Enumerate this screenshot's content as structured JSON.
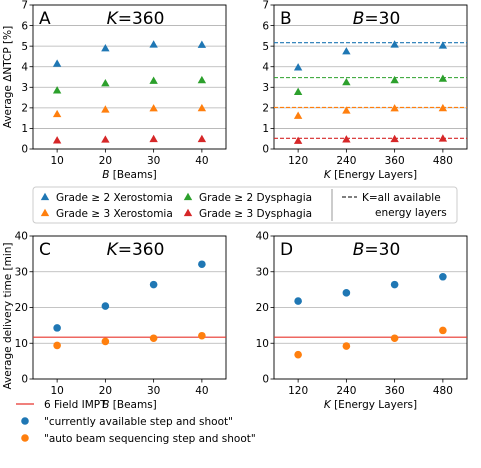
{
  "colors": {
    "blue": "#1f77b4",
    "orange": "#ff7f0e",
    "green": "#2ca02c",
    "red": "#d62728",
    "ref_line": "#e8352d",
    "grid": "#b0b0b0"
  },
  "top_legend": {
    "items": [
      {
        "label": "Grade ≥ 2 Xerostomia",
        "color": "blue",
        "marker": "triangle"
      },
      {
        "label": "Grade ≥ 3 Xerostomia",
        "color": "orange",
        "marker": "triangle"
      },
      {
        "label": "Grade ≥ 2 Dysphagia",
        "color": "green",
        "marker": "triangle"
      },
      {
        "label": "Grade ≥ 3 Dysphagia",
        "color": "red",
        "marker": "triangle"
      }
    ],
    "dashed_label_line1": "K=all available",
    "dashed_label_line2": "energy layers"
  },
  "bottom_legend": {
    "items": [
      {
        "label": "6 Field IMPT",
        "color": "ref_line",
        "marker": "line"
      },
      {
        "label": "\"currently available step and shoot\"",
        "color": "blue",
        "marker": "circle"
      },
      {
        "label": "\"auto beam sequencing step and shoot\"",
        "color": "orange",
        "marker": "circle"
      }
    ]
  },
  "chart_data": [
    {
      "type": "scatter",
      "panel_label": "A",
      "title_var": "K",
      "title_value": "=360",
      "xlabel_var": "B",
      "xlabel_rest": " [Beams]",
      "ylabel": "Average ΔNTCP [%]",
      "x": [
        10,
        20,
        30,
        40
      ],
      "xlim": [
        5,
        45
      ],
      "ylim": [
        0,
        7
      ],
      "yticks": [
        0,
        1,
        2,
        3,
        4,
        5,
        6,
        7
      ],
      "grid": "y",
      "marker": "triangle",
      "series": [
        {
          "color": "blue",
          "values": [
            4.15,
            4.9,
            5.08,
            5.07
          ]
        },
        {
          "color": "green",
          "values": [
            2.85,
            3.2,
            3.32,
            3.35
          ]
        },
        {
          "color": "orange",
          "values": [
            1.7,
            1.92,
            1.98,
            1.99
          ]
        },
        {
          "color": "red",
          "values": [
            0.42,
            0.46,
            0.49,
            0.49
          ]
        }
      ]
    },
    {
      "type": "scatter",
      "panel_label": "B",
      "title_var": "B",
      "title_value": "=30",
      "xlabel_var": "K",
      "xlabel_rest": " [Energy Layers]",
      "ylabel": "",
      "x": [
        120,
        240,
        360,
        480
      ],
      "xlim": [
        60,
        540
      ],
      "ylim": [
        0,
        7
      ],
      "yticks": [
        0,
        1,
        2,
        3,
        4,
        5,
        6,
        7
      ],
      "grid": "y",
      "marker": "triangle",
      "series": [
        {
          "color": "blue",
          "values": [
            3.97,
            4.75,
            5.08,
            5.03
          ],
          "ref": 5.17
        },
        {
          "color": "green",
          "values": [
            2.78,
            3.25,
            3.35,
            3.42
          ],
          "ref": 3.47
        },
        {
          "color": "orange",
          "values": [
            1.62,
            1.87,
            1.98,
            1.99
          ],
          "ref": 2.02
        },
        {
          "color": "red",
          "values": [
            0.4,
            0.47,
            0.49,
            0.51
          ],
          "ref": 0.52
        }
      ]
    },
    {
      "type": "scatter",
      "panel_label": "C",
      "title_var": "K",
      "title_value": "=360",
      "xlabel_var": "B",
      "xlabel_rest": " [Beams]",
      "ylabel": "Average delivery time [min]",
      "x": [
        10,
        20,
        30,
        40
      ],
      "xlim": [
        5,
        45
      ],
      "ylim": [
        0,
        40
      ],
      "yticks": [
        0,
        10,
        20,
        30,
        40
      ],
      "grid": "y",
      "marker": "circle",
      "ref_line": 11.7,
      "series": [
        {
          "color": "blue",
          "values": [
            14.3,
            20.4,
            26.4,
            32.1
          ]
        },
        {
          "color": "orange",
          "values": [
            9.4,
            10.5,
            11.4,
            12.1
          ]
        }
      ]
    },
    {
      "type": "scatter",
      "panel_label": "D",
      "title_var": "B",
      "title_value": "=30",
      "xlabel_var": "K",
      "xlabel_rest": " [Energy Layers]",
      "ylabel": "",
      "x": [
        120,
        240,
        360,
        480
      ],
      "xlim": [
        60,
        540
      ],
      "ylim": [
        0,
        40
      ],
      "yticks": [
        0,
        10,
        20,
        30,
        40
      ],
      "grid": "y",
      "marker": "circle",
      "ref_line": 11.7,
      "series": [
        {
          "color": "blue",
          "values": [
            21.8,
            24.1,
            26.4,
            28.6
          ]
        },
        {
          "color": "orange",
          "values": [
            6.8,
            9.2,
            11.4,
            13.6
          ]
        }
      ]
    }
  ]
}
